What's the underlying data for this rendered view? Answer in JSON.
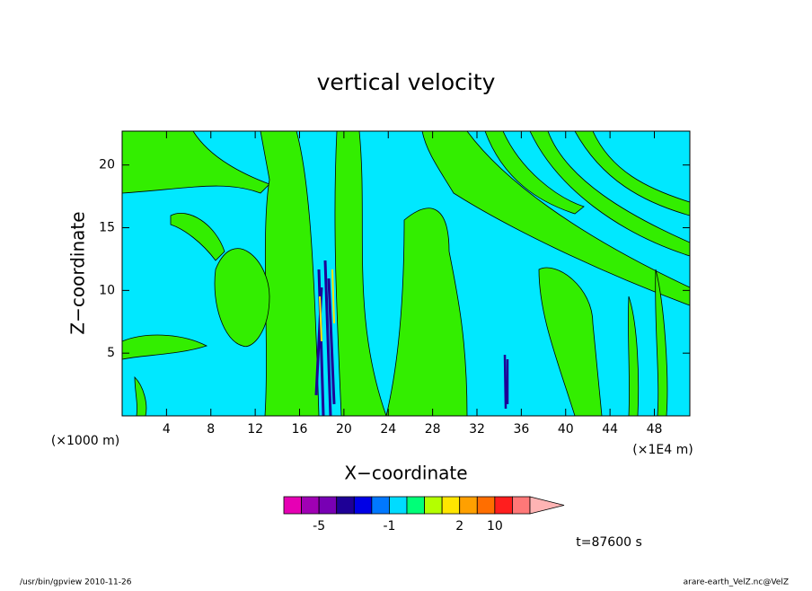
{
  "chart_data": {
    "type": "contour",
    "title": "vertical velocity",
    "x_label": "X−coordinate",
    "y_label": "Z−coordinate",
    "x_unit_label": "(×1000 m)",
    "x_unit_label_right": "(×1E4 m)",
    "xlim": [
      0,
      51.2
    ],
    "xticks": [
      4,
      8,
      12,
      16,
      20,
      24,
      28,
      32,
      36,
      40,
      44,
      48
    ],
    "ylim": [
      0,
      22.7
    ],
    "yticks": [
      5,
      10,
      15,
      20
    ],
    "field_colors": [
      "#00e8ff",
      "#33ee00"
    ],
    "colorbar": {
      "levels": [
        -20,
        -10,
        -5,
        -4,
        -3,
        -2,
        -1,
        -0.5,
        0.5,
        1,
        2,
        5,
        10,
        15,
        20
      ],
      "colors": [
        "#e600b4",
        "#a000b4",
        "#7800b4",
        "#1e0096",
        "#0000e6",
        "#0078ff",
        "#00dcff",
        "#00ff78",
        "#b4ff00",
        "#ffe600",
        "#ffa000",
        "#ff6e00",
        "#ff1e1e",
        "#ff7878",
        "#ffb4b4"
      ],
      "ticks": [
        -5,
        -1,
        2,
        10
      ]
    },
    "time_label": "t=87600 s",
    "footer_left": "/usr/bin/gpview   2010-11-26",
    "footer_right": "arare-earth_VelZ.nc@VelZ"
  }
}
